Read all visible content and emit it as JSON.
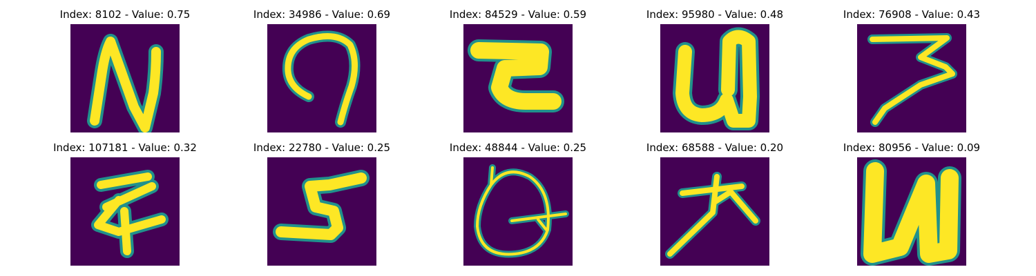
{
  "colors": {
    "background": "#440154",
    "edge": "#21918c",
    "foreground": "#fde725"
  },
  "chart_data": {
    "type": "image_grid",
    "rows": 2,
    "cols": 5,
    "panels": [
      {
        "title": "Index: 8102 - Value: 0.75",
        "index": 8102,
        "value": 0.75
      },
      {
        "title": "Index: 34986 - Value: 0.69",
        "index": 34986,
        "value": 0.69
      },
      {
        "title": "Index: 84529 - Value: 0.59",
        "index": 84529,
        "value": 0.59
      },
      {
        "title": "Index: 95980 - Value: 0.48",
        "index": 95980,
        "value": 0.48
      },
      {
        "title": "Index: 76908 - Value: 0.43",
        "index": 76908,
        "value": 0.43
      },
      {
        "title": "Index: 107181 - Value: 0.32",
        "index": 107181,
        "value": 0.32
      },
      {
        "title": "Index: 22780 - Value: 0.25",
        "index": 22780,
        "value": 0.25
      },
      {
        "title": "Index: 48844 - Value: 0.25",
        "index": 48844,
        "value": 0.25
      },
      {
        "title": "Index: 68588 - Value: 0.20",
        "index": 68588,
        "value": 0.2
      },
      {
        "title": "Index: 80956 - Value: 0.09",
        "index": 80956,
        "value": 0.09
      }
    ]
  }
}
